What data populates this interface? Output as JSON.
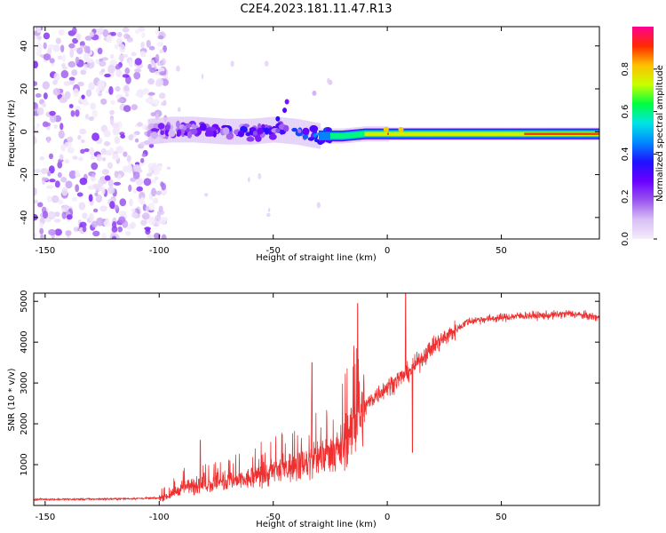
{
  "title": "C2E4.2023.181.11.47.R13",
  "chart_data": [
    {
      "type": "heatmap",
      "xlabel": "Height of straight line (km)",
      "ylabel": "Frequency (Hz)",
      "xlim": [
        -155,
        93
      ],
      "ylim": [
        -50,
        49
      ],
      "x_ticks": [
        -150,
        -100,
        -50,
        0,
        50
      ],
      "y_ticks": [
        -40,
        -20,
        0,
        20,
        40
      ],
      "grid": false,
      "colorbar": {
        "label": "Normalized spectral amplitude",
        "range": [
          0,
          1
        ],
        "ticks": [
          0.0,
          0.2,
          0.4,
          0.6,
          0.8
        ],
        "colormap": [
          "#f4ecfb",
          "#d9bff5",
          "#9a55ee",
          "#6a00ff",
          "#1f12ff",
          "#0088ff",
          "#00e5e5",
          "#00ff40",
          "#c8ff00",
          "#ffc000",
          "#ff2a00",
          "#ff0090"
        ]
      },
      "regions": [
        {
          "name": "noise",
          "x_range": [
            -155,
            -100
          ],
          "freq_range": [
            -50,
            49
          ],
          "amplitude": [
            0.0,
            0.15
          ]
        },
        {
          "name": "signal",
          "x_range": [
            -105,
            93
          ],
          "center_freq": [
            [
              -105,
              0
            ],
            [
              -95,
              1
            ],
            [
              -85,
              1
            ],
            [
              -70,
              0
            ],
            [
              -60,
              0
            ],
            [
              -50,
              1
            ],
            [
              -40,
              0
            ],
            [
              -30,
              -2
            ],
            [
              -20,
              -2
            ],
            [
              -10,
              -1
            ],
            [
              0,
              -1
            ],
            [
              10,
              -1
            ],
            [
              30,
              -1
            ],
            [
              50,
              -1
            ],
            [
              70,
              -1
            ],
            [
              93,
              -1
            ]
          ],
          "amplitude_profile": [
            [
              -105,
              0.2
            ],
            [
              -60,
              0.3
            ],
            [
              -30,
              0.4
            ],
            [
              -10,
              0.6
            ],
            [
              0,
              0.75
            ],
            [
              20,
              0.65
            ],
            [
              50,
              0.7
            ],
            [
              80,
              0.85
            ],
            [
              93,
              0.85
            ]
          ]
        }
      ]
    },
    {
      "type": "line",
      "xlabel": "Height of straight line (km)",
      "ylabel": "SNR (10 * v/v)",
      "xlim": [
        -155,
        93
      ],
      "ylim": [
        0,
        5200
      ],
      "x_ticks": [
        -150,
        -100,
        -50,
        0,
        50
      ],
      "y_ticks": [
        1000,
        2000,
        3000,
        4000,
        5000
      ],
      "grid": false,
      "series": [
        {
          "color": "#ee3030",
          "x": [
            -155,
            -140,
            -120,
            -100,
            -95,
            -90,
            -80,
            -70,
            -60,
            -50,
            -45,
            -40,
            -35,
            -30,
            -25,
            -20,
            -15,
            -10,
            -5,
            0,
            5,
            10,
            15,
            20,
            25,
            30,
            35,
            40,
            50,
            60,
            70,
            80,
            93
          ],
          "y": [
            150,
            150,
            160,
            180,
            250,
            450,
            500,
            550,
            650,
            800,
            900,
            1000,
            1000,
            1200,
            1300,
            1400,
            1900,
            2400,
            2700,
            2900,
            3100,
            3300,
            3600,
            3900,
            4100,
            4300,
            4500,
            4550,
            4600,
            4650,
            4650,
            4700,
            4600
          ],
          "spikes": [
            [
              -82,
              1600
            ],
            [
              -33,
              3500
            ],
            [
              -13,
              4950
            ],
            [
              8,
              5200
            ],
            [
              11,
              1300
            ]
          ]
        }
      ]
    }
  ]
}
